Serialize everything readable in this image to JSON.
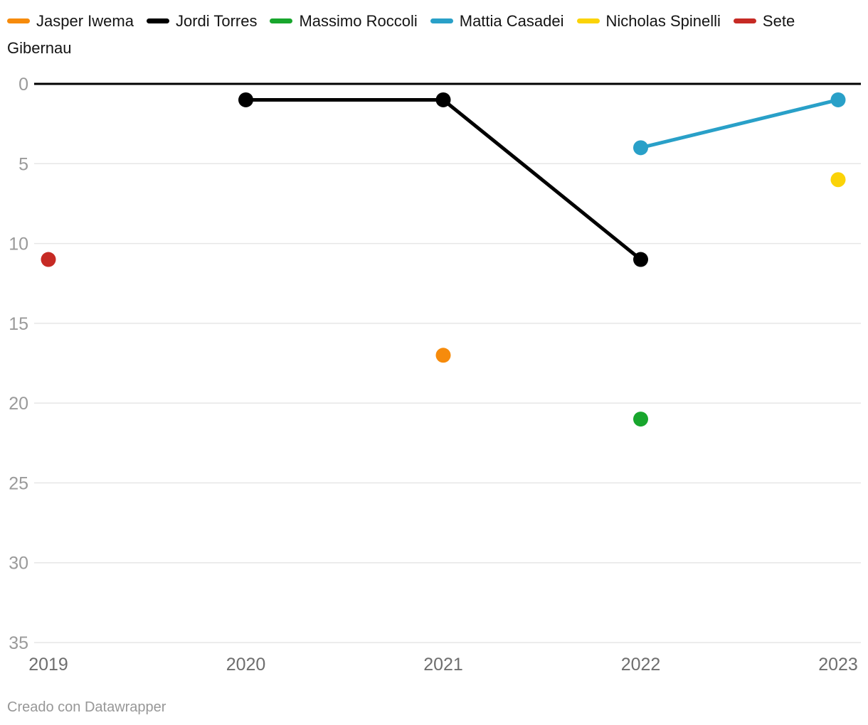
{
  "chart_data": {
    "type": "line",
    "title": "",
    "xlabel": "",
    "ylabel": "",
    "x": [
      2019,
      2020,
      2021,
      2022,
      2023
    ],
    "x_tick_labels": [
      "2019",
      "2020",
      "2021",
      "2022",
      "2023"
    ],
    "y_ticks": [
      0,
      5,
      10,
      15,
      20,
      25,
      30,
      35
    ],
    "ylim": [
      0,
      35
    ],
    "y_inverted": true,
    "grid": true,
    "legend_position": "top",
    "series": [
      {
        "name": "Jasper Iwema",
        "color": "#f68b0c",
        "points": [
          {
            "x": 2021,
            "y": 17
          }
        ]
      },
      {
        "name": "Jordi Torres",
        "color": "#000000",
        "points": [
          {
            "x": 2020,
            "y": 1
          },
          {
            "x": 2021,
            "y": 1
          },
          {
            "x": 2022,
            "y": 11
          }
        ]
      },
      {
        "name": "Massimo Roccoli",
        "color": "#18a62d",
        "points": [
          {
            "x": 2022,
            "y": 21
          }
        ]
      },
      {
        "name": "Mattia Casadei",
        "color": "#29a0c8",
        "points": [
          {
            "x": 2022,
            "y": 4
          },
          {
            "x": 2023,
            "y": 1
          }
        ]
      },
      {
        "name": "Nicholas Spinelli",
        "color": "#fbd308",
        "points": [
          {
            "x": 2023,
            "y": 6
          }
        ]
      },
      {
        "name": "Sete Gibernau",
        "color": "#c62a24",
        "points": [
          {
            "x": 2019,
            "y": 11
          }
        ]
      }
    ]
  },
  "footer": {
    "text": "Creado con Datawrapper"
  }
}
